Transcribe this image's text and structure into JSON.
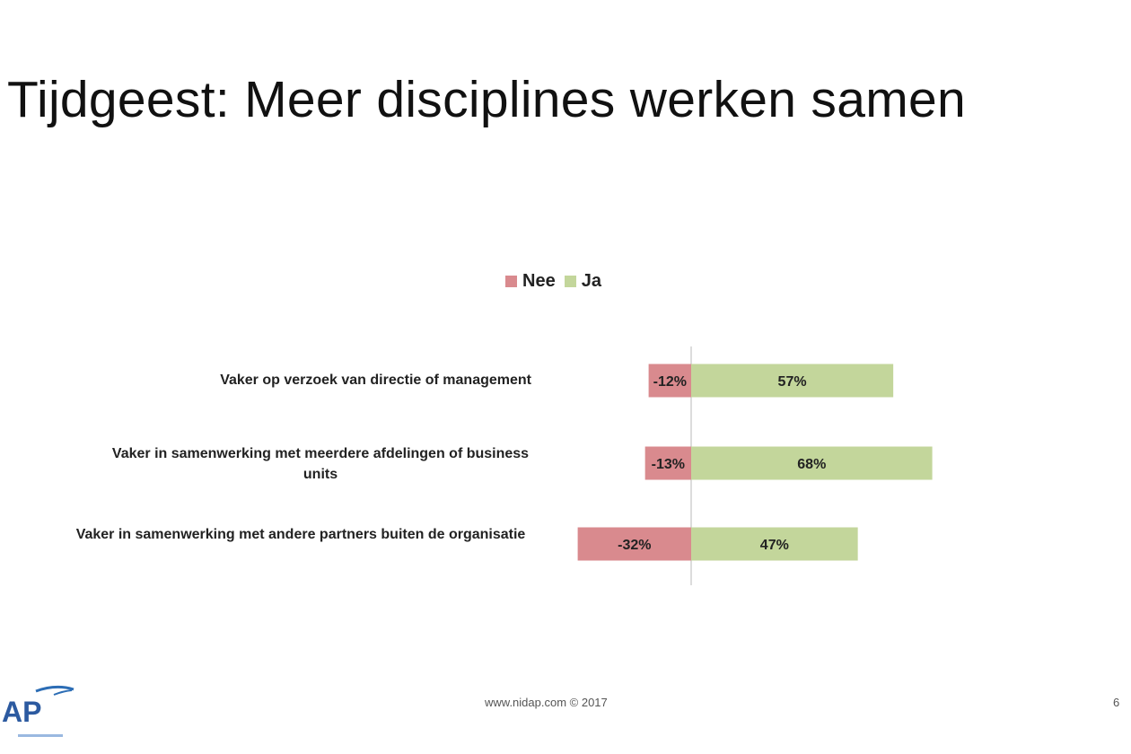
{
  "title": "Tijdgeest: Meer  disciplines  werken  samen",
  "footer": {
    "url": "www.nidap.com © 2017",
    "page_number": "6",
    "logo_text": "AP"
  },
  "chart_data": {
    "type": "bar",
    "orientation": "horizontal",
    "stacked_diverging": true,
    "title": "",
    "xlabel": "",
    "ylabel": "",
    "legend_position": "top-center",
    "categories": [
      "Vaker op verzoek van directie of management",
      "Vaker in samenwerking met meerdere afdelingen of business units",
      "Vaker in samenwerking met andere partners buiten de organisatie"
    ],
    "series": [
      {
        "name": "Nee",
        "color": "#d98a8e",
        "values": [
          -12,
          -13,
          -32
        ],
        "labels": [
          "-12%",
          "-13%",
          "-32%"
        ]
      },
      {
        "name": "Ja",
        "color": "#c3d69b",
        "values": [
          57,
          68,
          47
        ],
        "labels": [
          "57%",
          "68%",
          "47%"
        ]
      }
    ]
  }
}
